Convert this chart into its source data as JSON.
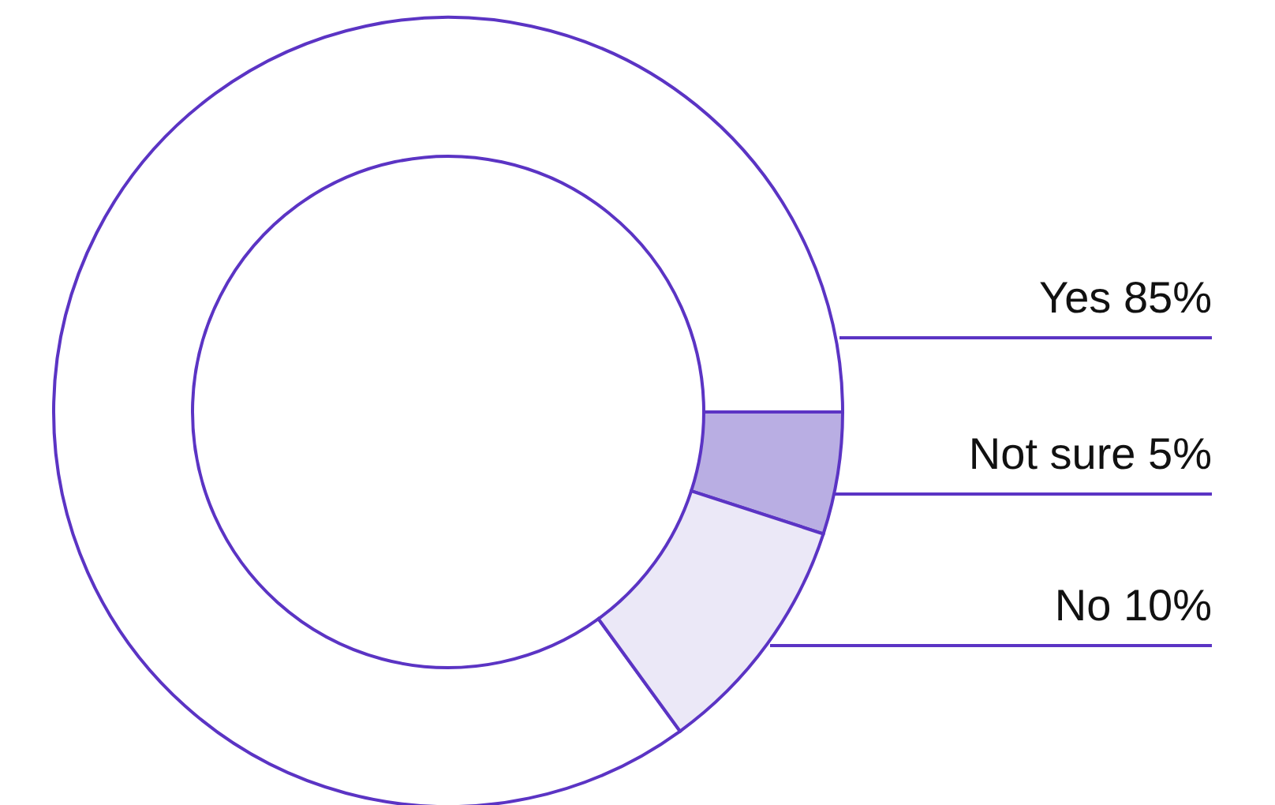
{
  "chart_data": {
    "type": "donut",
    "categories": [
      "Yes",
      "Not sure",
      "No"
    ],
    "values": [
      85,
      5,
      10
    ],
    "value_labels": [
      "85%",
      "5%",
      "10%"
    ],
    "colors": [
      "#ffffff",
      "#b9aee3",
      "#ebe8f7"
    ]
  }
}
